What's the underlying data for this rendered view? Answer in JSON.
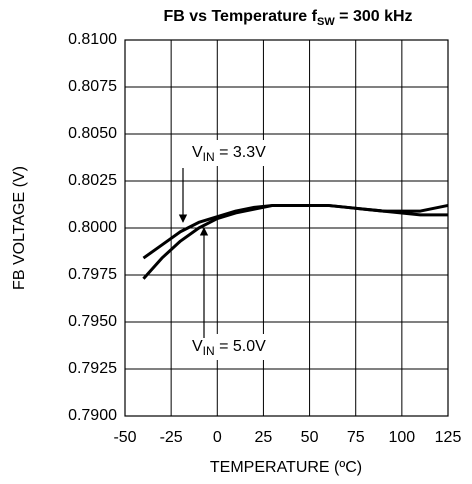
{
  "chart_data": {
    "type": "line",
    "title": {
      "text": "FB vs Temperature f",
      "sub": "SW",
      "rest": " = 300 kHz"
    },
    "x_label": "TEMPERATURE (ºC)",
    "y_label": "FB VOLTAGE (V)",
    "xlim": [
      -50,
      125
    ],
    "xticks": [
      -50,
      -25,
      0,
      25,
      50,
      75,
      100,
      125
    ],
    "ylim": [
      0.79,
      0.81
    ],
    "yticks": [
      {
        "value": 0.79,
        "label": "0.7900"
      },
      {
        "value": 0.7925,
        "label": "0.7925"
      },
      {
        "value": 0.795,
        "label": "0.7950"
      },
      {
        "value": 0.7975,
        "label": "0.7975"
      },
      {
        "value": 0.8,
        "label": "0.8000"
      },
      {
        "value": 0.8025,
        "label": "0.8025"
      },
      {
        "value": 0.805,
        "label": "0.8050"
      },
      {
        "value": 0.8075,
        "label": "0.8075"
      },
      {
        "value": 0.81,
        "label": "0.8100"
      }
    ],
    "grid": true,
    "x": [
      -40,
      -30,
      -20,
      -10,
      0,
      10,
      20,
      30,
      40,
      50,
      60,
      70,
      80,
      90,
      100,
      110,
      120,
      125
    ],
    "series": [
      {
        "color": "#000000",
        "values": [
          0.7984,
          0.7991,
          0.7998,
          0.8003,
          0.8006,
          0.8009,
          0.8011,
          0.8012,
          0.8012,
          0.8012,
          0.8012,
          0.8011,
          0.801,
          0.8009,
          0.8008,
          0.8007,
          0.8007,
          0.8007
        ]
      },
      {
        "color": "#000000",
        "values": [
          0.7973,
          0.7984,
          0.7993,
          0.8,
          0.8005,
          0.8008,
          0.801,
          0.8012,
          0.8012,
          0.8012,
          0.8012,
          0.8011,
          0.801,
          0.8009,
          0.8009,
          0.8009,
          0.8011,
          0.8012
        ]
      }
    ],
    "annotations": [
      {
        "v": "V",
        "sub": "IN",
        "rest": " = 3.3V"
      },
      {
        "v": "V",
        "sub": "IN",
        "rest": " = 5.0V"
      }
    ]
  }
}
